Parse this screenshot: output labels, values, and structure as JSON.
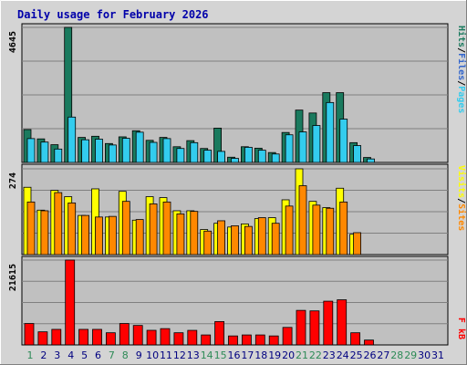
{
  "chart_data": {
    "type": "bar",
    "title": "Daily usage for February 2026",
    "categories": [
      "1",
      "2",
      "3",
      "4",
      "5",
      "6",
      "7",
      "8",
      "9",
      "10",
      "11",
      "12",
      "13",
      "14",
      "15",
      "16",
      "17",
      "18",
      "19",
      "20",
      "21",
      "22",
      "23",
      "24",
      "25",
      "26",
      "27",
      "28",
      "29",
      "30",
      "31"
    ],
    "weekend_days": [
      "1",
      "7",
      "8",
      "14",
      "15",
      "21",
      "22",
      "28",
      "29"
    ],
    "colors": {
      "hits": "#1a7a5e",
      "files": "#33ccee",
      "sites": "#ff8800",
      "visits": "#ffff00",
      "kbytes": "#ff0000",
      "weekend_label": "#2e8b57",
      "weekday_label": "#000080",
      "plot_bg": "#c0c0c0",
      "frame_bg": "#d4d4d4"
    },
    "panels": [
      {
        "id": "hits-files",
        "ytick": "4645",
        "ylim": [
          0,
          4645
        ],
        "side_label": [
          "Pages",
          "Files",
          "Hits"
        ],
        "side_colors": [
          "#33ccee",
          "#3366cc",
          "#1a7a5e"
        ],
        "series": [
          {
            "name": "Hits",
            "key": "hits",
            "values": [
              1130,
              810,
              610,
              4645,
              860,
              900,
              650,
              880,
              1090,
              760,
              860,
              540,
              750,
              480,
              1180,
              180,
              540,
              490,
              340,
              1030,
              1800,
              1700,
              2400,
              2400,
              680,
              170,
              0,
              0,
              0,
              0,
              0
            ]
          },
          {
            "name": "Files",
            "key": "files",
            "values": [
              820,
              700,
              460,
              1560,
              780,
              800,
              600,
              830,
              1040,
              690,
              820,
              480,
              680,
              420,
              380,
              140,
              520,
              420,
              290,
              950,
              1050,
              1270,
              2060,
              1490,
              580,
              120,
              0,
              0,
              0,
              0,
              0
            ]
          }
        ]
      },
      {
        "id": "sites-visits",
        "ytick": "274",
        "ylim": [
          0,
          274
        ],
        "side_label": [
          "Sites",
          "Visits"
        ],
        "side_colors": [
          "#ff8800",
          "#ffff00"
        ],
        "series": [
          {
            "name": "Visits",
            "key": "visits",
            "values": [
              215,
              142,
              205,
              185,
              125,
              210,
              120,
              202,
              110,
              185,
              182,
              140,
              140,
              80,
              100,
              88,
              98,
              115,
              118,
              175,
              274,
              170,
              150,
              212,
              65,
              0,
              0,
              0,
              0,
              0,
              0
            ]
          },
          {
            "name": "Sites",
            "key": "sites",
            "values": [
              168,
              140,
              198,
              165,
              125,
              120,
              122,
              170,
              112,
              162,
              168,
              130,
              138,
              75,
              108,
              92,
              90,
              118,
              100,
              155,
              220,
              158,
              148,
              168,
              70,
              0,
              0,
              0,
              0,
              0,
              0
            ]
          }
        ]
      },
      {
        "id": "kbytes",
        "ytick": "21615",
        "ylim": [
          0,
          21615
        ],
        "side_label": [
          "kB",
          "F"
        ],
        "side_colors": [
          "#ff0000",
          "#ff0000"
        ],
        "series": [
          {
            "name": "kB F",
            "key": "kbytes",
            "values": [
              5450,
              3340,
              3960,
              21615,
              3960,
              3960,
              3100,
              5450,
              4960,
              3720,
              4150,
              3100,
              3710,
              2540,
              5950,
              2290,
              2540,
              2540,
              2290,
              4460,
              8800,
              8670,
              11140,
              11500,
              3100,
              1240,
              0,
              0,
              0,
              0,
              0
            ]
          }
        ]
      }
    ]
  }
}
